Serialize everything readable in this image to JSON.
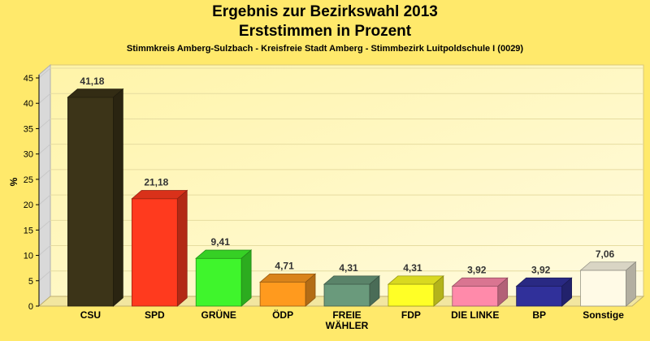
{
  "chart_data": {
    "type": "bar",
    "title": "Ergebnis zur Bezirkswahl 2013",
    "title_line2": "Erststimmen in Prozent",
    "subtitle": "Stimmkreis Amberg-Sulzbach - Kreisfreie Stadt Amberg - Stimmbezirk Luitpoldschule I (0029)",
    "xlabel": "",
    "ylabel": "%",
    "ylim": [
      0,
      45
    ],
    "yticks": [
      "0",
      "5",
      "10",
      "15",
      "20",
      "25",
      "30",
      "35",
      "40",
      "45"
    ],
    "grid": true,
    "categories": [
      "CSU",
      "SPD",
      "GRÜNE",
      "ÖDP",
      "FREIE WÄHLER",
      "FDP",
      "DIE LINKE",
      "BP",
      "Sonstige"
    ],
    "values": [
      41.18,
      21.18,
      9.41,
      4.71,
      4.31,
      4.31,
      3.92,
      3.92,
      7.06
    ],
    "value_labels": [
      "41,18",
      "21,18",
      "9,41",
      "4,71",
      "4,31",
      "4,31",
      "3,92",
      "3,92",
      "7,06"
    ],
    "colors": [
      "#3c3418",
      "#ff3a1e",
      "#3ff52c",
      "#ff9a1e",
      "#6a9a7c",
      "#ffff26",
      "#ff8aaa",
      "#30309a",
      "#fffae6"
    ]
  }
}
